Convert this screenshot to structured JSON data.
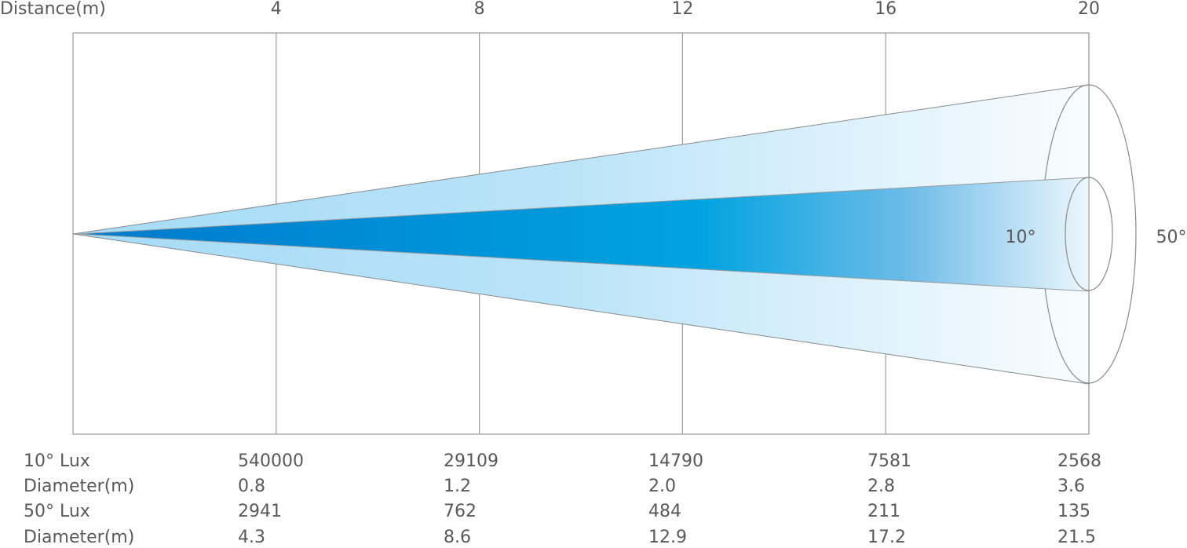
{
  "distance": {
    "label": "Distance(m)",
    "ticks": [
      4,
      8,
      12,
      16,
      20
    ]
  },
  "beams": [
    {
      "label": "10°"
    },
    {
      "label": "50°"
    }
  ],
  "table": {
    "rows": [
      {
        "label": "10° Lux",
        "values": [
          "540000",
          "29109",
          "14790",
          "7581",
          "2568"
        ]
      },
      {
        "label": "Diameter(m)",
        "values": [
          "0.8",
          "1.2",
          "2.0",
          "2.8",
          "3.6"
        ]
      },
      {
        "label": "50° Lux",
        "values": [
          "2941",
          "762",
          "484",
          "211",
          "135"
        ]
      },
      {
        "label": "Diameter(m)",
        "values": [
          "4.3",
          "8.6",
          "12.9",
          "17.2",
          "21.5"
        ]
      }
    ]
  }
}
